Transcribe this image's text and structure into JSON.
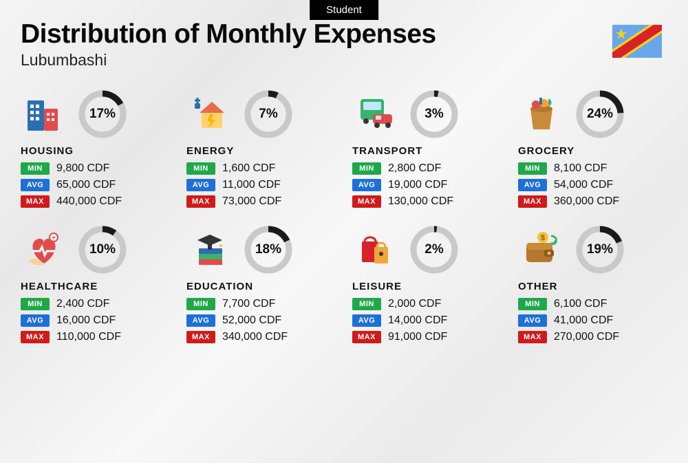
{
  "badge": "Student",
  "title": "Distribution of Monthly Expenses",
  "subtitle": "Lubumbashi",
  "currency": "CDF",
  "colors": {
    "min": "#1fa84a",
    "avg": "#1e6fd9",
    "max": "#d11a1a",
    "donut_track": "#c9c9c9",
    "donut_fill": "#1a1a1a",
    "text": "#111111"
  },
  "labels": {
    "min": "MIN",
    "avg": "AVG",
    "max": "MAX"
  },
  "flag": {
    "bg": "#6aa7ea",
    "stripe": "#d8222a",
    "stripe_border": "#f7d117",
    "star": "#f7d117"
  },
  "donut": {
    "radius": 30,
    "stroke": 9
  },
  "categories": [
    {
      "key": "housing",
      "name": "HOUSING",
      "pct": 17,
      "min": "9,800",
      "avg": "65,000",
      "max": "440,000",
      "icon": "buildings"
    },
    {
      "key": "energy",
      "name": "ENERGY",
      "pct": 7,
      "min": "1,600",
      "avg": "11,000",
      "max": "73,000",
      "icon": "energy"
    },
    {
      "key": "transport",
      "name": "TRANSPORT",
      "pct": 3,
      "min": "2,800",
      "avg": "19,000",
      "max": "130,000",
      "icon": "transport"
    },
    {
      "key": "grocery",
      "name": "GROCERY",
      "pct": 24,
      "min": "8,100",
      "avg": "54,000",
      "max": "360,000",
      "icon": "grocery"
    },
    {
      "key": "healthcare",
      "name": "HEALTHCARE",
      "pct": 10,
      "min": "2,400",
      "avg": "16,000",
      "max": "110,000",
      "icon": "healthcare"
    },
    {
      "key": "education",
      "name": "EDUCATION",
      "pct": 18,
      "min": "7,700",
      "avg": "52,000",
      "max": "340,000",
      "icon": "education"
    },
    {
      "key": "leisure",
      "name": "LEISURE",
      "pct": 2,
      "min": "2,000",
      "avg": "14,000",
      "max": "91,000",
      "icon": "leisure"
    },
    {
      "key": "other",
      "name": "OTHER",
      "pct": 19,
      "min": "6,100",
      "avg": "41,000",
      "max": "270,000",
      "icon": "wallet"
    }
  ]
}
